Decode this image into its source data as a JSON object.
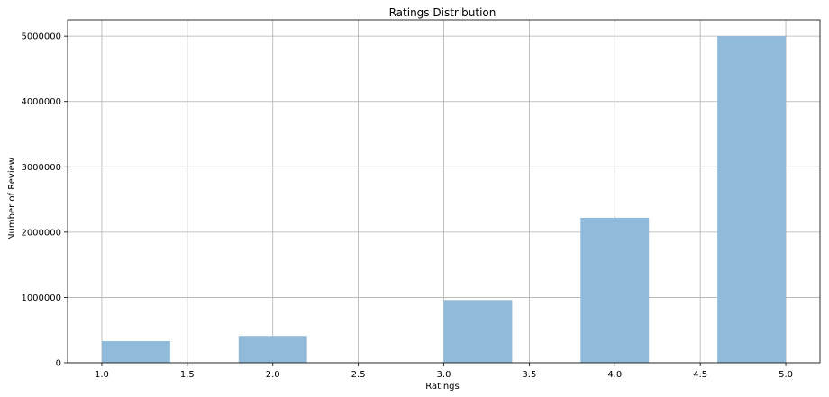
{
  "chart_data": {
    "type": "bar",
    "title": "Ratings Distribution",
    "xlabel": "Ratings",
    "ylabel": "Number of Review",
    "bar_color": "#8fbad9",
    "grid": true,
    "xlim": [
      0.8,
      5.2
    ],
    "ylim": [
      0,
      5250000
    ],
    "xticks": [
      1.0,
      1.5,
      2.0,
      2.5,
      3.0,
      3.5,
      4.0,
      4.5,
      5.0
    ],
    "xtick_labels": [
      "1.0",
      "1.5",
      "2.0",
      "2.5",
      "3.0",
      "3.5",
      "4.0",
      "4.5",
      "5.0"
    ],
    "yticks": [
      0,
      1000000,
      2000000,
      3000000,
      4000000,
      5000000
    ],
    "ytick_labels": [
      "0",
      "1000000",
      "2000000",
      "3000000",
      "4000000",
      "5000000"
    ],
    "bins": [
      {
        "start": 1.0,
        "end": 1.4,
        "count": 330000
      },
      {
        "start": 1.8,
        "end": 2.2,
        "count": 410000
      },
      {
        "start": 3.0,
        "end": 3.4,
        "count": 960000
      },
      {
        "start": 3.8,
        "end": 4.2,
        "count": 2220000
      },
      {
        "start": 4.6,
        "end": 5.0,
        "count": 5000000
      }
    ]
  }
}
